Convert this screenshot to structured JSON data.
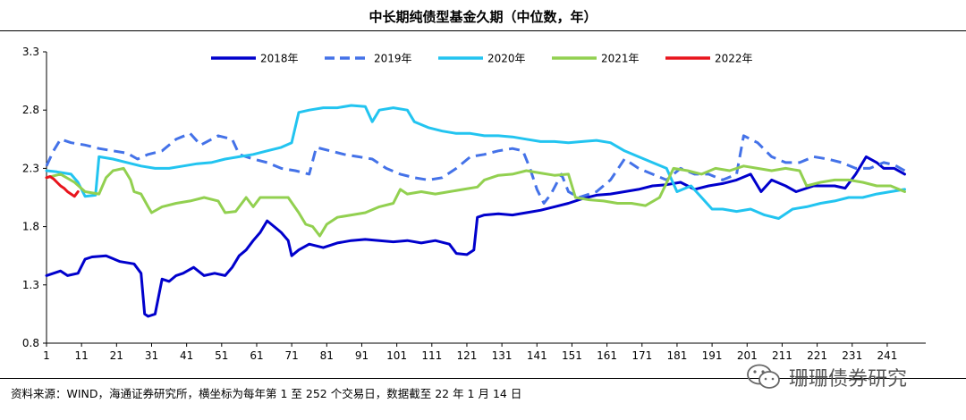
{
  "title": "中长期纯债型基金久期（中位数，年）",
  "source": "资料来源：WIND，海通证券研究所，横坐标为每年第 1 至 252 个交易日，数据截至 22 年 1 月 14 日",
  "watermark": "珊珊债券研究",
  "chart_data": {
    "type": "line",
    "xlim": [
      1,
      252
    ],
    "ylim": [
      0.8,
      3.3
    ],
    "x_ticks": [
      1,
      11,
      21,
      31,
      41,
      51,
      61,
      71,
      81,
      91,
      101,
      111,
      121,
      131,
      141,
      151,
      161,
      171,
      181,
      191,
      201,
      211,
      221,
      231,
      241
    ],
    "y_ticks": [
      0.8,
      1.3,
      1.8,
      2.3,
      2.8,
      3.3
    ],
    "legend_position": "top-center",
    "grid": false,
    "series": [
      {
        "name": "2018年",
        "color": "#0000CC",
        "dash": "solid",
        "points": [
          [
            1,
            1.38
          ],
          [
            5,
            1.42
          ],
          [
            7,
            1.38
          ],
          [
            10,
            1.4
          ],
          [
            12,
            1.52
          ],
          [
            14,
            1.54
          ],
          [
            18,
            1.55
          ],
          [
            22,
            1.5
          ],
          [
            26,
            1.48
          ],
          [
            28,
            1.4
          ],
          [
            29,
            1.05
          ],
          [
            30,
            1.03
          ],
          [
            32,
            1.05
          ],
          [
            34,
            1.35
          ],
          [
            36,
            1.33
          ],
          [
            38,
            1.38
          ],
          [
            40,
            1.4
          ],
          [
            43,
            1.45
          ],
          [
            46,
            1.38
          ],
          [
            49,
            1.4
          ],
          [
            52,
            1.38
          ],
          [
            54,
            1.45
          ],
          [
            56,
            1.55
          ],
          [
            58,
            1.6
          ],
          [
            60,
            1.68
          ],
          [
            62,
            1.75
          ],
          [
            64,
            1.85
          ],
          [
            66,
            1.8
          ],
          [
            68,
            1.75
          ],
          [
            70,
            1.68
          ],
          [
            71,
            1.55
          ],
          [
            73,
            1.6
          ],
          [
            76,
            1.65
          ],
          [
            80,
            1.62
          ],
          [
            84,
            1.66
          ],
          [
            88,
            1.68
          ],
          [
            92,
            1.69
          ],
          [
            96,
            1.68
          ],
          [
            100,
            1.67
          ],
          [
            104,
            1.68
          ],
          [
            108,
            1.66
          ],
          [
            112,
            1.68
          ],
          [
            116,
            1.65
          ],
          [
            118,
            1.57
          ],
          [
            121,
            1.56
          ],
          [
            123,
            1.6
          ],
          [
            124,
            1.88
          ],
          [
            126,
            1.9
          ],
          [
            130,
            1.91
          ],
          [
            134,
            1.9
          ],
          [
            138,
            1.92
          ],
          [
            142,
            1.94
          ],
          [
            146,
            1.97
          ],
          [
            150,
            2.0
          ],
          [
            154,
            2.04
          ],
          [
            158,
            2.07
          ],
          [
            162,
            2.08
          ],
          [
            166,
            2.1
          ],
          [
            170,
            2.12
          ],
          [
            174,
            2.15
          ],
          [
            178,
            2.16
          ],
          [
            182,
            2.18
          ],
          [
            186,
            2.12
          ],
          [
            190,
            2.15
          ],
          [
            194,
            2.17
          ],
          [
            198,
            2.2
          ],
          [
            202,
            2.25
          ],
          [
            205,
            2.1
          ],
          [
            208,
            2.2
          ],
          [
            212,
            2.15
          ],
          [
            215,
            2.1
          ],
          [
            220,
            2.15
          ],
          [
            226,
            2.15
          ],
          [
            229,
            2.13
          ],
          [
            232,
            2.25
          ],
          [
            235,
            2.4
          ],
          [
            238,
            2.35
          ],
          [
            240,
            2.3
          ],
          [
            243,
            2.3
          ],
          [
            246,
            2.25
          ]
        ]
      },
      {
        "name": "2019年",
        "color": "#4472E8",
        "dash": "dashed",
        "points": [
          [
            1,
            2.32
          ],
          [
            3,
            2.45
          ],
          [
            5,
            2.55
          ],
          [
            8,
            2.52
          ],
          [
            12,
            2.5
          ],
          [
            16,
            2.47
          ],
          [
            20,
            2.45
          ],
          [
            24,
            2.43
          ],
          [
            27,
            2.38
          ],
          [
            30,
            2.42
          ],
          [
            34,
            2.45
          ],
          [
            38,
            2.55
          ],
          [
            42,
            2.6
          ],
          [
            45,
            2.5
          ],
          [
            50,
            2.58
          ],
          [
            54,
            2.55
          ],
          [
            56,
            2.42
          ],
          [
            60,
            2.38
          ],
          [
            64,
            2.35
          ],
          [
            68,
            2.3
          ],
          [
            72,
            2.28
          ],
          [
            76,
            2.25
          ],
          [
            78,
            2.48
          ],
          [
            82,
            2.45
          ],
          [
            86,
            2.42
          ],
          [
            90,
            2.4
          ],
          [
            94,
            2.38
          ],
          [
            98,
            2.3
          ],
          [
            102,
            2.25
          ],
          [
            106,
            2.22
          ],
          [
            110,
            2.2
          ],
          [
            114,
            2.22
          ],
          [
            118,
            2.3
          ],
          [
            122,
            2.4
          ],
          [
            126,
            2.42
          ],
          [
            130,
            2.45
          ],
          [
            134,
            2.47
          ],
          [
            137,
            2.45
          ],
          [
            139,
            2.3
          ],
          [
            141,
            2.12
          ],
          [
            143,
            2.0
          ],
          [
            145,
            2.08
          ],
          [
            148,
            2.25
          ],
          [
            150,
            2.1
          ],
          [
            153,
            2.05
          ],
          [
            158,
            2.1
          ],
          [
            162,
            2.2
          ],
          [
            166,
            2.38
          ],
          [
            170,
            2.3
          ],
          [
            174,
            2.25
          ],
          [
            178,
            2.2
          ],
          [
            182,
            2.3
          ],
          [
            186,
            2.25
          ],
          [
            190,
            2.25
          ],
          [
            194,
            2.2
          ],
          [
            198,
            2.25
          ],
          [
            200,
            2.58
          ],
          [
            204,
            2.52
          ],
          [
            208,
            2.4
          ],
          [
            212,
            2.35
          ],
          [
            216,
            2.35
          ],
          [
            220,
            2.4
          ],
          [
            224,
            2.38
          ],
          [
            228,
            2.35
          ],
          [
            232,
            2.3
          ],
          [
            236,
            2.3
          ],
          [
            240,
            2.35
          ],
          [
            243,
            2.33
          ],
          [
            246,
            2.28
          ]
        ]
      },
      {
        "name": "2020年",
        "color": "#22C4F0",
        "dash": "solid",
        "points": [
          [
            1,
            2.28
          ],
          [
            4,
            2.27
          ],
          [
            8,
            2.25
          ],
          [
            10,
            2.18
          ],
          [
            12,
            2.06
          ],
          [
            15,
            2.07
          ],
          [
            16,
            2.4
          ],
          [
            20,
            2.38
          ],
          [
            24,
            2.35
          ],
          [
            28,
            2.32
          ],
          [
            32,
            2.3
          ],
          [
            36,
            2.3
          ],
          [
            40,
            2.32
          ],
          [
            44,
            2.34
          ],
          [
            48,
            2.35
          ],
          [
            52,
            2.38
          ],
          [
            56,
            2.4
          ],
          [
            60,
            2.42
          ],
          [
            64,
            2.45
          ],
          [
            68,
            2.48
          ],
          [
            71,
            2.52
          ],
          [
            73,
            2.78
          ],
          [
            76,
            2.8
          ],
          [
            80,
            2.82
          ],
          [
            84,
            2.82
          ],
          [
            88,
            2.84
          ],
          [
            92,
            2.83
          ],
          [
            94,
            2.7
          ],
          [
            96,
            2.8
          ],
          [
            100,
            2.82
          ],
          [
            104,
            2.8
          ],
          [
            106,
            2.7
          ],
          [
            110,
            2.65
          ],
          [
            114,
            2.62
          ],
          [
            118,
            2.6
          ],
          [
            122,
            2.6
          ],
          [
            126,
            2.58
          ],
          [
            130,
            2.58
          ],
          [
            134,
            2.57
          ],
          [
            138,
            2.55
          ],
          [
            142,
            2.53
          ],
          [
            146,
            2.53
          ],
          [
            150,
            2.52
          ],
          [
            154,
            2.53
          ],
          [
            158,
            2.54
          ],
          [
            162,
            2.52
          ],
          [
            166,
            2.45
          ],
          [
            170,
            2.4
          ],
          [
            174,
            2.35
          ],
          [
            178,
            2.3
          ],
          [
            181,
            2.1
          ],
          [
            185,
            2.15
          ],
          [
            188,
            2.05
          ],
          [
            191,
            1.95
          ],
          [
            194,
            1.95
          ],
          [
            198,
            1.93
          ],
          [
            202,
            1.95
          ],
          [
            206,
            1.9
          ],
          [
            210,
            1.87
          ],
          [
            214,
            1.95
          ],
          [
            218,
            1.97
          ],
          [
            222,
            2.0
          ],
          [
            226,
            2.02
          ],
          [
            230,
            2.05
          ],
          [
            234,
            2.05
          ],
          [
            238,
            2.08
          ],
          [
            242,
            2.1
          ],
          [
            246,
            2.12
          ]
        ]
      },
      {
        "name": "2021年",
        "color": "#92D050",
        "dash": "solid",
        "points": [
          [
            1,
            2.22
          ],
          [
            5,
            2.25
          ],
          [
            9,
            2.18
          ],
          [
            12,
            2.1
          ],
          [
            16,
            2.08
          ],
          [
            18,
            2.22
          ],
          [
            20,
            2.28
          ],
          [
            23,
            2.3
          ],
          [
            25,
            2.2
          ],
          [
            26,
            2.1
          ],
          [
            28,
            2.08
          ],
          [
            30,
            1.97
          ],
          [
            31,
            1.92
          ],
          [
            34,
            1.97
          ],
          [
            38,
            2.0
          ],
          [
            42,
            2.02
          ],
          [
            46,
            2.05
          ],
          [
            50,
            2.02
          ],
          [
            52,
            1.92
          ],
          [
            55,
            1.93
          ],
          [
            58,
            2.05
          ],
          [
            60,
            1.97
          ],
          [
            62,
            2.05
          ],
          [
            66,
            2.05
          ],
          [
            70,
            2.05
          ],
          [
            73,
            1.92
          ],
          [
            75,
            1.82
          ],
          [
            77,
            1.8
          ],
          [
            79,
            1.72
          ],
          [
            81,
            1.82
          ],
          [
            84,
            1.88
          ],
          [
            88,
            1.9
          ],
          [
            92,
            1.92
          ],
          [
            96,
            1.97
          ],
          [
            100,
            2.0
          ],
          [
            102,
            2.12
          ],
          [
            104,
            2.08
          ],
          [
            108,
            2.1
          ],
          [
            112,
            2.08
          ],
          [
            116,
            2.1
          ],
          [
            120,
            2.12
          ],
          [
            124,
            2.14
          ],
          [
            126,
            2.2
          ],
          [
            130,
            2.24
          ],
          [
            134,
            2.25
          ],
          [
            138,
            2.28
          ],
          [
            142,
            2.26
          ],
          [
            146,
            2.24
          ],
          [
            150,
            2.25
          ],
          [
            152,
            2.05
          ],
          [
            156,
            2.03
          ],
          [
            160,
            2.02
          ],
          [
            164,
            2.0
          ],
          [
            168,
            2.0
          ],
          [
            172,
            1.98
          ],
          [
            176,
            2.05
          ],
          [
            180,
            2.3
          ],
          [
            184,
            2.28
          ],
          [
            188,
            2.25
          ],
          [
            192,
            2.3
          ],
          [
            196,
            2.28
          ],
          [
            200,
            2.32
          ],
          [
            204,
            2.3
          ],
          [
            208,
            2.28
          ],
          [
            212,
            2.3
          ],
          [
            216,
            2.28
          ],
          [
            218,
            2.15
          ],
          [
            222,
            2.18
          ],
          [
            226,
            2.2
          ],
          [
            230,
            2.2
          ],
          [
            234,
            2.18
          ],
          [
            238,
            2.15
          ],
          [
            242,
            2.15
          ],
          [
            246,
            2.1
          ]
        ]
      },
      {
        "name": "2022年",
        "color": "#E8141C",
        "dash": "solid",
        "points": [
          [
            1,
            2.22
          ],
          [
            2,
            2.23
          ],
          [
            3,
            2.21
          ],
          [
            4,
            2.18
          ],
          [
            5,
            2.15
          ],
          [
            6,
            2.13
          ],
          [
            7,
            2.1
          ],
          [
            8,
            2.08
          ],
          [
            9,
            2.06
          ],
          [
            10,
            2.1
          ]
        ]
      }
    ]
  }
}
